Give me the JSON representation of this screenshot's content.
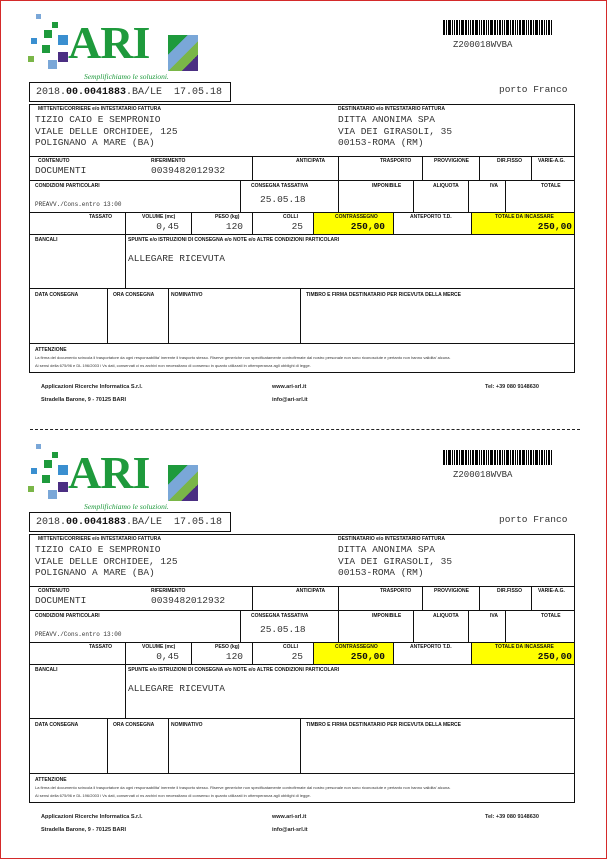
{
  "brand": {
    "logo_text": "ARI",
    "tagline": "Semplifichiamo le soluzioni.",
    "green": "#1e9a3c",
    "blue": "#3a8fd0",
    "purple": "#4b2f82"
  },
  "barcode_text": "Z200018WVBA",
  "doc_number": {
    "prefix": "2018.",
    "bold": "00.0041883",
    "suffix": ".BA/LE  17.05.18"
  },
  "porto": "porto Franco",
  "labels": {
    "mittente": "MITTENTE/CORRIERE e/o INTESTATARIO FATTURA",
    "destinatario": "DESTINATARIO e/o INTESTATARIO FATTURA",
    "contenuto": "CONTENUTO",
    "riferimento": "RIFERIMENTO",
    "anticipata": "ANTICIPATA",
    "trasporto": "TRASPORTO",
    "provvigione": "PROVVIGIONE",
    "dirfisso": "DIR.FISSO",
    "varie": "VARIE-A.G.",
    "condizioni": "CONDIZIONI PARTICOLARI",
    "consegna_tassativa": "CONSEGNA TASSATIVA",
    "imponibile": "IMPONIBILE",
    "aliquota": "ALIQUOTA",
    "iva": "IVA",
    "totale": "TOTALE",
    "tassato": "TASSATO",
    "volume": "VOLUME (mc)",
    "peso": "PESO (kg)",
    "colli": "COLLI",
    "contrassegno": "CONTRASSEGNO",
    "anteporto": "ANTEPORTO T.D.",
    "totale_incassare": "TOTALE DA INCASSARE",
    "bancali": "BANCALI",
    "spunte": "SPUNTE e/o ISTRUZIONI DI CONSEGNA e/o NOTE e/o ALTRE CONDIZIONI PARTICOLARI",
    "data_consegna": "DATA CONSEGNA",
    "ora_consegna": "ORA CONSEGNA",
    "nominativo": "NOMINATIVO",
    "timbro": "TIMBRO E FIRMA DESTINATARIO PER RICEVUTA DELLA MERCE",
    "attenzione": "ATTENZIONE"
  },
  "mittente": [
    "TIZIO CAIO E SEMPRONIO",
    "VIALE DELLE ORCHIDEE, 125",
    "POLIGNANO A MARE (BA)"
  ],
  "destinatario": [
    "DITTA ANONIMA SPA",
    "VIA DEI GIRASOLI, 35",
    "00153-ROMA (RM)"
  ],
  "values": {
    "contenuto": "DOCUMENTI",
    "riferimento": "0039482012932",
    "condizioni": "PREAVV./Cons.entro 13:00",
    "consegna_tassativa": "25.05.18",
    "volume": "0,45",
    "peso": "120",
    "colli": "25",
    "contrassegno": "250,00",
    "totale_incassare": "250,00",
    "note": "ALLEGARE RICEVUTA"
  },
  "attenzione_text": [
    "La firma del documento svincola il trasportatore da ogni responsabilita' inerente il trasporto stesso. Riserve generiche non specificatamente controfirmate dal nostro personale non sono riconosciute e pertanto non hanno validita' alcuna.",
    "Ai sensi della 675/96 e DL 196/2003 i Vs dati, conservati ci ns archivi non necessitano di consenso in quanto utilizzati in ottemperanza agli obblighi di legge."
  ],
  "footer": {
    "company": "Applicazioni Ricerche Informatica S.r.l.",
    "address": "Stradella Barone, 9 - 70125 BARI",
    "web": "www.ari-srl.it",
    "email": "info@ari-srl.it",
    "tel": "Tel: +39 080 9148630"
  },
  "highlight_color": "#ffff00"
}
